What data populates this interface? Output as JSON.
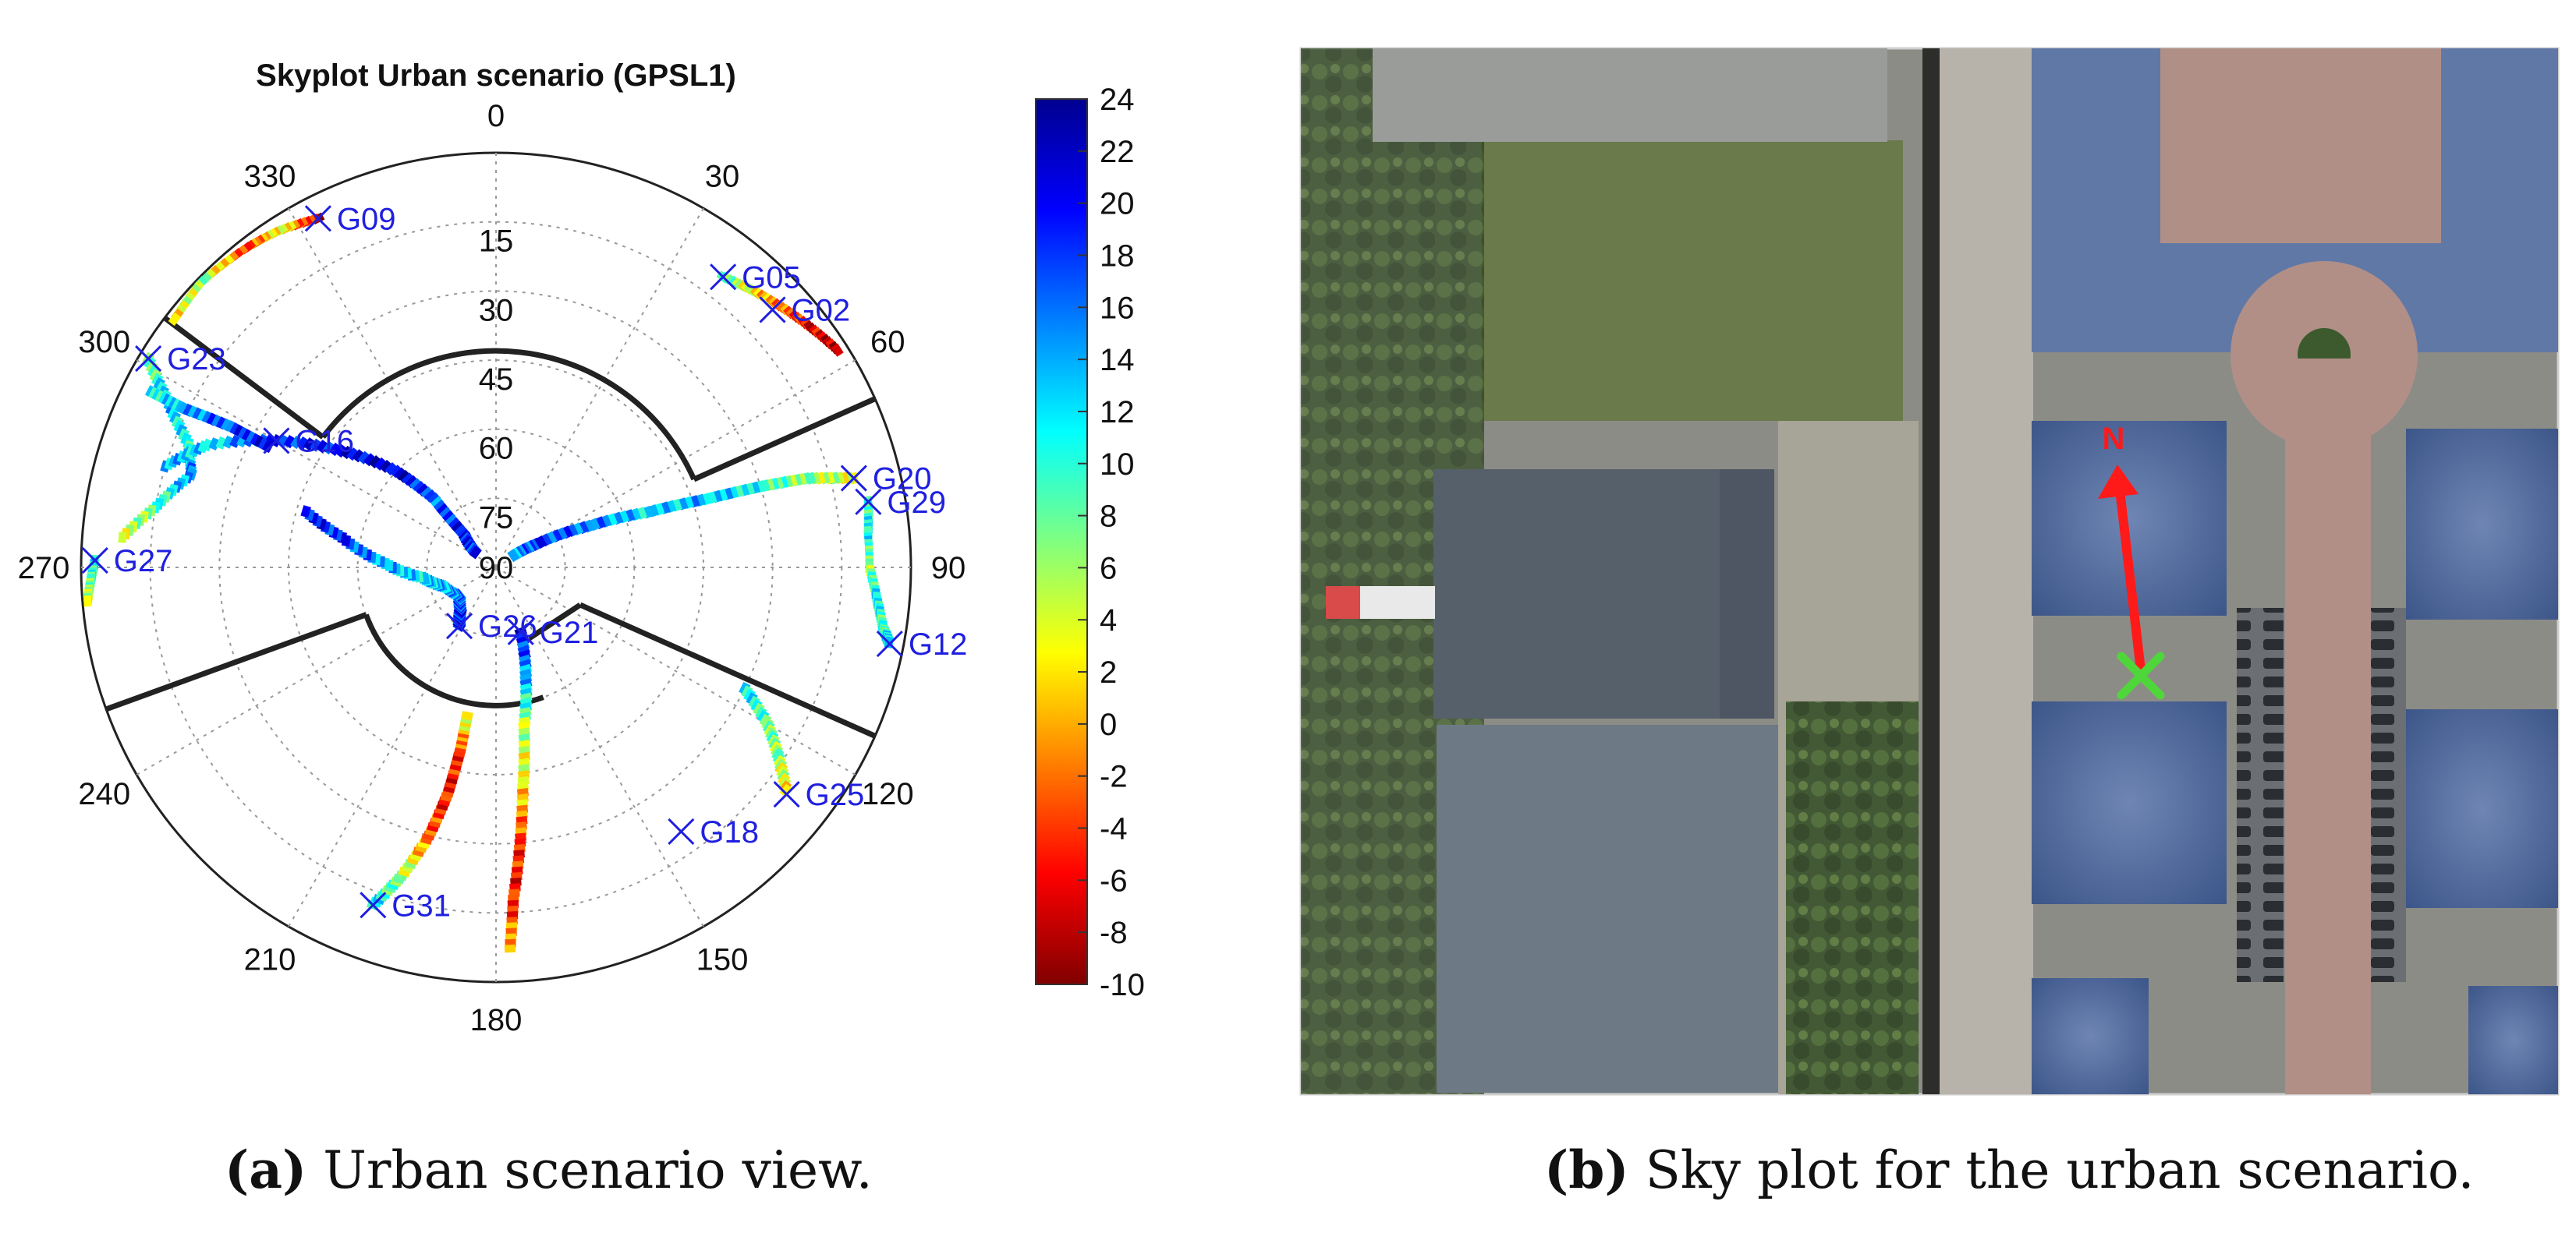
{
  "chart_data": {
    "type": "scatter",
    "subtype": "polar-skyplot",
    "title": "Skyplot Urban scenario (GPSL1)",
    "azimuth_ticks": [
      0,
      30,
      60,
      90,
      120,
      150,
      180,
      210,
      240,
      270,
      300,
      330
    ],
    "elevation_ticks": [
      15,
      30,
      45,
      60,
      75,
      90
    ],
    "elevation_range": [
      0,
      90
    ],
    "grid": true,
    "colorbar": {
      "min": -10,
      "max": 24,
      "ticks": [
        24,
        22,
        20,
        18,
        16,
        14,
        12,
        10,
        8,
        6,
        4,
        2,
        0,
        -2,
        -4,
        -6,
        -8,
        -10
      ]
    },
    "satellites": [
      {
        "name": "G09",
        "az": 333,
        "el": 5
      },
      {
        "name": "G05",
        "az": 38,
        "el": 10
      },
      {
        "name": "G02",
        "az": 47,
        "el": 8
      },
      {
        "name": "G23",
        "az": 301,
        "el": 2
      },
      {
        "name": "G16",
        "az": 300,
        "el": 35
      },
      {
        "name": "G20",
        "az": 76,
        "el": 10
      },
      {
        "name": "G29",
        "az": 80,
        "el": 8
      },
      {
        "name": "G27",
        "az": 271,
        "el": 3
      },
      {
        "name": "G26",
        "az": 212,
        "el": 75
      },
      {
        "name": "G21",
        "az": 159,
        "el": 75
      },
      {
        "name": "G12",
        "az": 101,
        "el": 3
      },
      {
        "name": "G25",
        "az": 128,
        "el": 10
      },
      {
        "name": "G18",
        "az": 145,
        "el": 20
      },
      {
        "name": "G31",
        "az": 200,
        "el": 12
      }
    ],
    "tracks": [
      {
        "points": [
          [
            333,
            5
          ],
          [
            327,
            3
          ],
          [
            322,
            2
          ],
          [
            314,
            1
          ],
          [
            307,
            2
          ]
        ],
        "values": [
          -8,
          4,
          -4,
          6,
          2
        ]
      },
      {
        "points": [
          [
            38,
            10
          ],
          [
            43,
            8
          ],
          [
            48,
            6
          ],
          [
            53,
            4
          ],
          [
            58,
            2
          ]
        ],
        "values": [
          10,
          2,
          -2,
          -6,
          -9
        ]
      },
      {
        "points": [
          [
            301,
            2
          ],
          [
            297,
            10
          ],
          [
            292,
            18
          ],
          [
            287,
            21
          ],
          [
            280,
            15
          ],
          [
            274,
            8
          ]
        ],
        "values": [
          6,
          14,
          10,
          16,
          8,
          4
        ]
      },
      {
        "points": [
          [
            287,
            15
          ],
          [
            293,
            22
          ],
          [
            300,
            35
          ],
          [
            307,
            48
          ],
          [
            314,
            60
          ],
          [
            318,
            70
          ],
          [
            316,
            80
          ],
          [
            305,
            85
          ]
        ],
        "values": [
          14,
          12,
          18,
          20,
          22,
          16,
          20,
          18
        ]
      },
      {
        "points": [
          [
            297,
            6
          ],
          [
            297,
            14
          ],
          [
            298,
            25
          ],
          [
            298,
            35
          ]
        ],
        "values": [
          10,
          14,
          18,
          20
        ]
      },
      {
        "points": [
          [
            271,
            3
          ],
          [
            268,
            2
          ],
          [
            265,
            1
          ]
        ],
        "values": [
          12,
          8,
          4
        ]
      },
      {
        "points": [
          [
            76,
            10
          ],
          [
            74,
            20
          ],
          [
            73,
            30
          ],
          [
            72,
            42
          ],
          [
            70,
            55
          ],
          [
            66,
            68
          ],
          [
            60,
            80
          ],
          [
            55,
            86
          ]
        ],
        "values": [
          4,
          6,
          10,
          14,
          12,
          16,
          18,
          14
        ]
      },
      {
        "points": [
          [
            80,
            8
          ],
          [
            85,
            9
          ],
          [
            90,
            9
          ],
          [
            95,
            7
          ],
          [
            99,
            5
          ],
          [
            101,
            3
          ]
        ],
        "values": [
          8,
          12,
          6,
          12,
          8,
          14
        ]
      },
      {
        "points": [
          [
            116,
            30
          ],
          [
            120,
            22
          ],
          [
            124,
            16
          ],
          [
            128,
            10
          ]
        ],
        "values": [
          12,
          8,
          6,
          2
        ]
      },
      {
        "points": [
          [
            159,
            75
          ],
          [
            165,
            65
          ],
          [
            170,
            55
          ],
          [
            173,
            42
          ],
          [
            175,
            30
          ],
          [
            177,
            18
          ],
          [
            178,
            6
          ]
        ],
        "values": [
          20,
          14,
          6,
          2,
          -4,
          -6,
          2
        ]
      },
      {
        "points": [
          [
            200,
            12
          ],
          [
            197,
            20
          ],
          [
            194,
            30
          ],
          [
            192,
            40
          ],
          [
            191,
            50
          ],
          [
            191,
            58
          ]
        ],
        "values": [
          12,
          6,
          -2,
          -6,
          -4,
          6
        ]
      },
      {
        "points": [
          [
            212,
            75
          ],
          [
            220,
            78
          ],
          [
            232,
            80
          ],
          [
            250,
            78
          ],
          [
            262,
            74
          ],
          [
            272,
            66
          ],
          [
            281,
            56
          ],
          [
            287,
            46
          ]
        ],
        "values": [
          20,
          18,
          16,
          14,
          12,
          14,
          18,
          20
        ]
      }
    ]
  },
  "image_panel": {
    "north_label": "N",
    "marker_icon": "x-mark-icon"
  },
  "captions": {
    "a_letter": "(a)",
    "a_text": " Urban scenario view.",
    "b_letter": "(b)",
    "b_text": " Sky plot for the urban scenario."
  }
}
